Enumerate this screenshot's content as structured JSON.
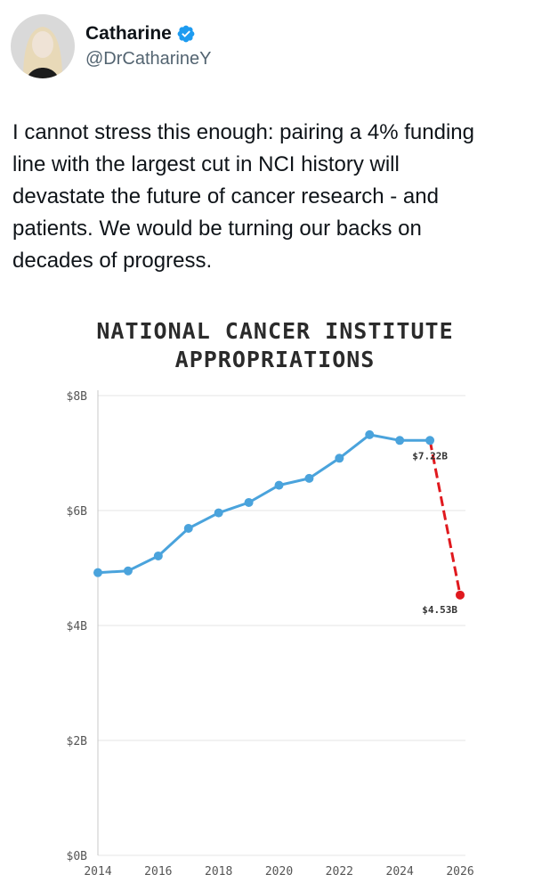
{
  "tweet": {
    "display_name": "Catharine",
    "handle": "@DrCatharineY",
    "text": "I cannot stress this enough: pairing a 4% funding\nline with the largest cut in NCI history will\ndevastate the future of cancer research - and\npatients. We would be turning our backs on\ndecades of progress."
  },
  "colors": {
    "line": "#4aa3dc",
    "cut": "#e0191e",
    "verified": "#1d9bf0"
  },
  "chart_data": {
    "type": "line",
    "title_line1": "NATIONAL CANCER INSTITUTE",
    "title_line2": "APPROPRIATIONS",
    "xlabel": "",
    "ylabel": "",
    "xlim": [
      2014,
      2026
    ],
    "ylim": [
      0,
      8
    ],
    "x_ticks": [
      "2014",
      "2016",
      "2018",
      "2020",
      "2022",
      "2024",
      "2026"
    ],
    "y_ticks": [
      "$0B",
      "$2B",
      "$4B",
      "$6B",
      "$8B"
    ],
    "grid": "horizontal",
    "series": [
      {
        "x": [
          2014,
          2015,
          2016,
          2017,
          2018,
          2019,
          2020,
          2021,
          2022,
          2023,
          2024,
          2025
        ],
        "y": [
          4.92,
          4.95,
          5.21,
          5.69,
          5.96,
          6.14,
          6.44,
          6.56,
          6.91,
          7.32,
          7.22,
          7.22
        ],
        "color": "#4aa3dc",
        "style": "solid"
      },
      {
        "x": [
          2025,
          2026
        ],
        "y": [
          7.22,
          4.53
        ],
        "color": "#e0191e",
        "style": "dashed"
      }
    ],
    "annotations": [
      {
        "x": 2025,
        "y": 7.22,
        "text": "$7.22B"
      },
      {
        "x": 2026,
        "y": 4.53,
        "text": "$4.53B"
      }
    ]
  }
}
